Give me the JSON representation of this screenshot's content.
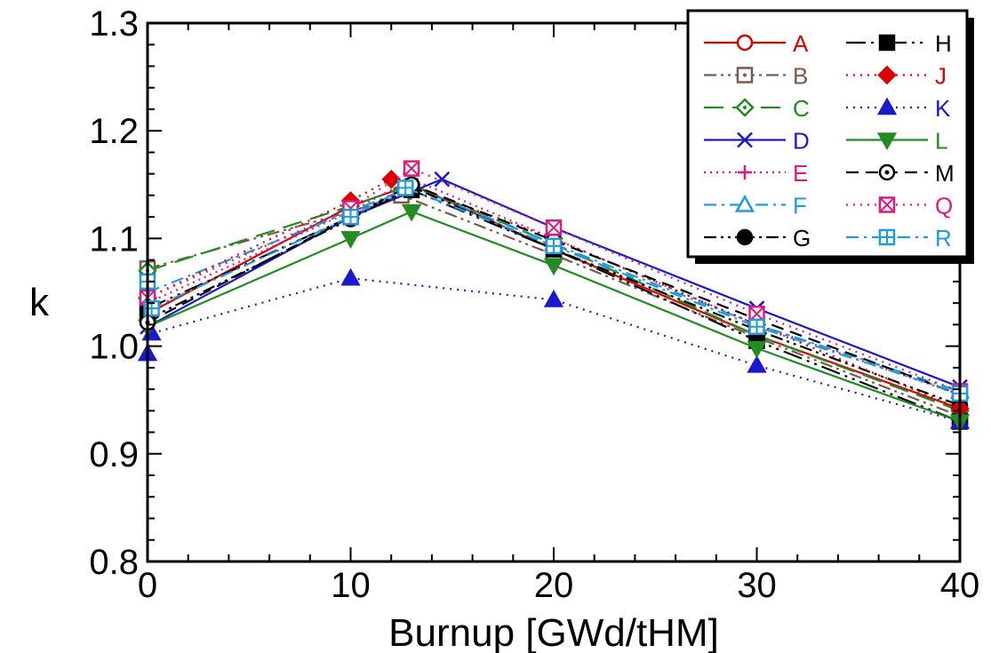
{
  "chart_data": {
    "type": "line",
    "title": "",
    "xlabel": "Burnup [GWd/tHM]",
    "ylabel": "k",
    "xlim": [
      0,
      40
    ],
    "ylim": [
      0.8,
      1.3
    ],
    "x_ticks": [
      "0",
      "10",
      "20",
      "30",
      "40"
    ],
    "y_ticks": [
      "0.8",
      "0.9",
      "1.0",
      "1.1",
      "1.2",
      "1.3"
    ],
    "grid": false,
    "legend": {
      "placement": "top-right",
      "columns": 2
    },
    "series": [
      {
        "name": "A",
        "color": "#dd0000",
        "dash": "solid",
        "marker": "circle-open",
        "x": [
          0,
          10,
          13,
          20,
          30,
          40
        ],
        "y": [
          1.03,
          1.13,
          1.15,
          1.09,
          1.01,
          0.942
        ]
      },
      {
        "name": "B",
        "color": "#7a5a4a",
        "dash": "dashdotdot",
        "marker": "square-dot",
        "x": [
          0,
          10,
          12.5,
          20,
          30,
          40
        ],
        "y": [
          1.072,
          1.125,
          1.14,
          1.085,
          1.008,
          0.935
        ]
      },
      {
        "name": "C",
        "color": "#228b22",
        "dash": "longdash",
        "marker": "diamond-dot",
        "x": [
          0,
          10,
          13,
          20,
          30,
          40
        ],
        "y": [
          1.07,
          1.13,
          1.15,
          1.095,
          1.01,
          0.94
        ]
      },
      {
        "name": "D",
        "color": "#1a1acc",
        "dash": "solid",
        "marker": "x",
        "x": [
          0,
          10,
          14.5,
          20,
          30,
          40
        ],
        "y": [
          1.018,
          1.12,
          1.155,
          1.11,
          1.035,
          0.962
        ]
      },
      {
        "name": "E",
        "color": "#e0197d",
        "dash": "dotplus",
        "marker": "plus",
        "x": [
          0,
          10,
          13,
          20,
          30,
          40
        ],
        "y": [
          1.04,
          1.125,
          1.155,
          1.1,
          1.02,
          0.955
        ]
      },
      {
        "name": "F",
        "color": "#1e9be0",
        "dash": "dashdot",
        "marker": "triangle-open",
        "x": [
          0,
          10,
          13,
          20,
          30,
          40
        ],
        "y": [
          1.05,
          1.125,
          1.148,
          1.095,
          1.02,
          0.958
        ]
      },
      {
        "name": "G",
        "color": "#000000",
        "dash": "dashdotdot",
        "marker": "circle-filled",
        "x": [
          0,
          10,
          13,
          20,
          30,
          40
        ],
        "y": [
          1.025,
          1.118,
          1.148,
          1.09,
          1.015,
          0.945
        ]
      },
      {
        "name": "H",
        "color": "#000000",
        "dash": "longdashdotdot",
        "marker": "square-filled",
        "x": [
          0,
          10,
          13,
          20,
          30,
          40
        ],
        "y": [
          1.035,
          1.12,
          1.145,
          1.09,
          1.005,
          0.93
        ]
      },
      {
        "name": "J",
        "color": "#dd0000",
        "dash": "dotted",
        "marker": "diamond-filled",
        "x": [
          0,
          10,
          12,
          20,
          30,
          40
        ],
        "y": [
          1.045,
          1.135,
          1.155,
          1.1,
          1.02,
          0.942
        ]
      },
      {
        "name": "K",
        "color": "#1a1acc",
        "dash": "dotted",
        "marker": "triangle-filled",
        "x": [
          0,
          0.2,
          10,
          20,
          30,
          40
        ],
        "y": [
          0.993,
          1.012,
          1.063,
          1.043,
          0.982,
          0.93
        ]
      },
      {
        "name": "L",
        "color": "#228b22",
        "dash": "solid",
        "marker": "triangle-down-filled",
        "x": [
          0,
          10,
          13,
          20,
          30,
          40
        ],
        "y": [
          1.018,
          1.1,
          1.125,
          1.075,
          0.998,
          0.93
        ]
      },
      {
        "name": "M",
        "color": "#000000",
        "dash": "dashed",
        "marker": "circle-dot",
        "x": [
          0,
          10,
          13,
          20,
          30,
          40
        ],
        "y": [
          1.022,
          1.12,
          1.15,
          1.098,
          1.025,
          0.955
        ]
      },
      {
        "name": "Q",
        "color": "#e0197d",
        "dash": "dotted",
        "marker": "square-x",
        "x": [
          0,
          10,
          13,
          20,
          30,
          40
        ],
        "y": [
          1.045,
          1.128,
          1.165,
          1.11,
          1.03,
          0.958
        ]
      },
      {
        "name": "R",
        "color": "#1e9be0",
        "dash": "dashdot",
        "marker": "square-plus",
        "x": [
          0,
          0.2,
          10,
          12.7,
          20,
          30,
          40
        ],
        "y": [
          1.06,
          1.035,
          1.12,
          1.147,
          1.093,
          1.018,
          0.956
        ]
      }
    ]
  }
}
